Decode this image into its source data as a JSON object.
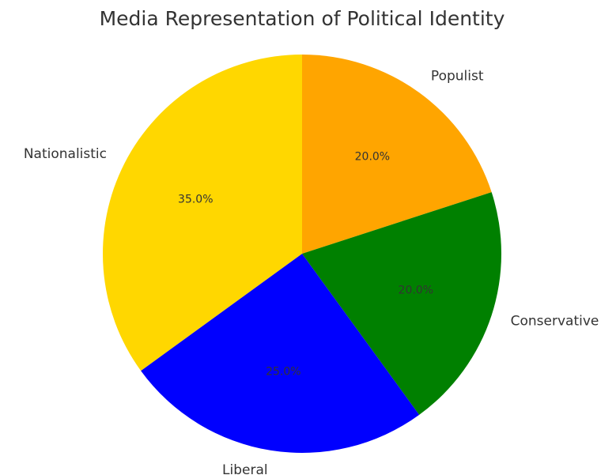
{
  "chart_data": {
    "type": "pie",
    "title": "Media Representation of Political Identity",
    "categories": [
      "Populist",
      "Conservative",
      "Liberal",
      "Nationalistic"
    ],
    "values": [
      20,
      20,
      25,
      35
    ],
    "percent_labels": [
      "20.0%",
      "20.0%",
      "25.0%",
      "35.0%"
    ],
    "colors": [
      "#FFA500",
      "#008000",
      "#0000FF",
      "#FFD700"
    ],
    "start_angle_deg": 90,
    "direction": "clockwise",
    "legend": "none"
  }
}
